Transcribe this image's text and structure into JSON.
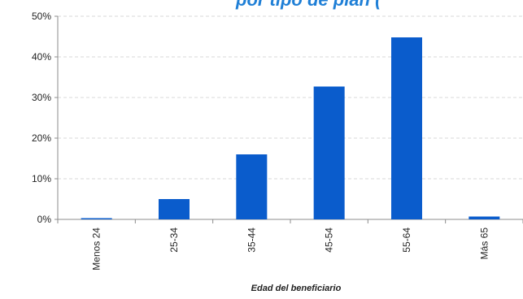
{
  "title_fragment": "por tipo de plan (",
  "chart_data": {
    "type": "bar",
    "categories": [
      "Menos 24",
      "25-34",
      "35-44",
      "45-54",
      "55-64",
      "Más 65"
    ],
    "series": [
      {
        "values": [
          0.3,
          5.0,
          16.0,
          32.7,
          44.8,
          0.7
        ]
      }
    ],
    "ylim": [
      0,
      50
    ],
    "yticks": [
      0,
      10,
      20,
      30,
      40,
      50
    ],
    "ytick_labels": [
      "0%",
      "10%",
      "20%",
      "30%",
      "40%",
      "50%"
    ],
    "xlabel": "Edad del beneficiario",
    "ylabel": "",
    "grid": true,
    "bar_color": "#0a5ccc"
  }
}
